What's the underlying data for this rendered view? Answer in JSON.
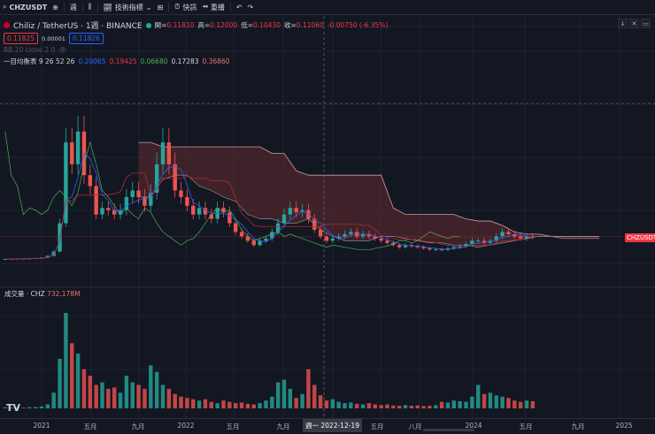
{
  "toolbar": {
    "symbol": "CHZUSDT",
    "interval": "週",
    "indicators": "技術指標",
    "alert": "快訊",
    "replay": "重播"
  },
  "legend": {
    "title": "Chiliz / TetherUS · 1週 · BINANCE",
    "open_label": "開",
    "open": "0.11810",
    "high_label": "高",
    "high": "0.12000",
    "low_label": "低",
    "low": "0.10430",
    "close_label": "收",
    "close": "0.11060",
    "change": "-0.00750 (-6.35%)",
    "bid": "0.11825",
    "spread": "0.00001",
    "ask": "0.11826",
    "bb": "BB 20 close 2 0",
    "ichimoku_name": "一目均衡表 9 26 52 26",
    "ichimoku_values": [
      "0.20065",
      "0.19425",
      "0.06680",
      "0.17283",
      "0.36860"
    ]
  },
  "volume_pane": {
    "title": "成交量 · CHZ",
    "value": "732.178M"
  },
  "price_tag": "CHZUSDT",
  "time_axis": {
    "labels": [
      "2021",
      "五月",
      "九月",
      "2022",
      "五月",
      "九月",
      "五月",
      "八月",
      "2024",
      "五月",
      "九月",
      "2025"
    ],
    "crosshair": "週一 2022-12-19"
  },
  "colors": {
    "up": "#26a69a",
    "down": "#ef5350",
    "cloud": "#5d2a2e",
    "conversion": "#2962ff",
    "base": "#b22833",
    "lagging": "#4caf50",
    "bg": "#131722"
  },
  "chart_data": {
    "type": "candlestick",
    "interval": "semi-monthly approx",
    "start": "2020-10",
    "closes": [
      0.016,
      0.017,
      0.018,
      0.017,
      0.019,
      0.02,
      0.022,
      0.03,
      0.05,
      0.18,
      0.55,
      0.45,
      0.6,
      0.4,
      0.35,
      0.22,
      0.25,
      0.24,
      0.22,
      0.24,
      0.3,
      0.33,
      0.3,
      0.26,
      0.32,
      0.45,
      0.55,
      0.45,
      0.33,
      0.3,
      0.26,
      0.22,
      0.25,
      0.22,
      0.2,
      0.25,
      0.23,
      0.18,
      0.14,
      0.12,
      0.1,
      0.08,
      0.1,
      0.11,
      0.14,
      0.18,
      0.22,
      0.25,
      0.23,
      0.24,
      0.2,
      0.15,
      0.12,
      0.1,
      0.11,
      0.12,
      0.13,
      0.14,
      0.12,
      0.13,
      0.12,
      0.11,
      0.1,
      0.09,
      0.08,
      0.07,
      0.08,
      0.075,
      0.07,
      0.065,
      0.06,
      0.06,
      0.058,
      0.065,
      0.07,
      0.075,
      0.085,
      0.1,
      0.1,
      0.09,
      0.1,
      0.12,
      0.14,
      0.13,
      0.12,
      0.11,
      0.12,
      0.118
    ],
    "volumes_m": [
      8,
      6,
      7,
      5,
      9,
      10,
      15,
      30,
      120,
      380,
      732,
      500,
      420,
      300,
      250,
      180,
      200,
      150,
      160,
      120,
      250,
      200,
      180,
      150,
      330,
      280,
      180,
      150,
      110,
      90,
      80,
      70,
      60,
      70,
      50,
      40,
      60,
      50,
      40,
      45,
      35,
      30,
      40,
      60,
      90,
      200,
      220,
      150,
      80,
      110,
      300,
      180,
      100,
      60,
      70,
      50,
      40,
      45,
      35,
      30,
      40,
      30,
      25,
      30,
      22,
      20,
      25,
      20,
      22,
      18,
      20,
      25,
      50,
      45,
      60,
      55,
      50,
      90,
      180,
      110,
      120,
      100,
      90,
      80,
      60,
      50,
      60,
      55
    ],
    "cloud_start": "2021-09",
    "cloud_top": [
      0.55,
      0.55,
      0.53,
      0.53,
      0.53,
      0.53,
      0.53,
      0.53,
      0.53,
      0.53,
      0.53,
      0.5,
      0.5,
      0.42,
      0.4,
      0.4,
      0.4,
      0.4,
      0.4,
      0.4,
      0.4,
      0.25,
      0.22,
      0.22,
      0.22,
      0.22,
      0.22,
      0.2,
      0.19,
      0.19,
      0.17,
      0.14,
      0.13,
      0.13,
      0.12,
      0.12,
      0.12,
      0.12,
      0.12
    ],
    "cloud_bottom": [
      0.3,
      0.3,
      0.38,
      0.4,
      0.4,
      0.35,
      0.33,
      0.3,
      0.28,
      0.22,
      0.2,
      0.2,
      0.18,
      0.18,
      0.2,
      0.15,
      0.12,
      0.1,
      0.1,
      0.1,
      0.12,
      0.12,
      0.11,
      0.1,
      0.09,
      0.09,
      0.08,
      0.08,
      0.07,
      0.08,
      0.09,
      0.1,
      0.11,
      0.12,
      0.12,
      0.11,
      0.11,
      0.11,
      0.11
    ]
  }
}
